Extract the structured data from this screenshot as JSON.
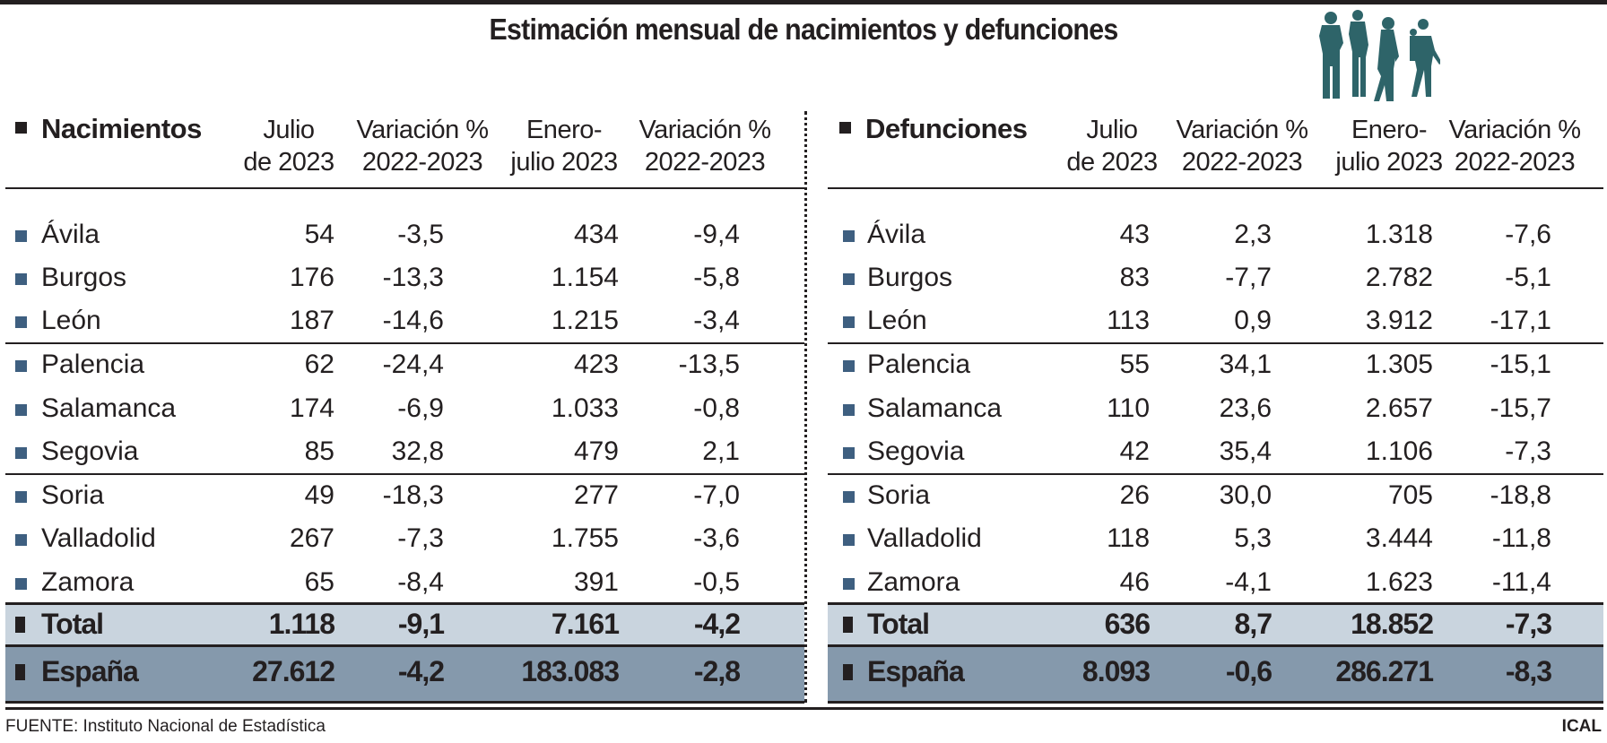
{
  "title": "Estimación mensual de nacimientos y defunciones",
  "chart_data": [
    {
      "type": "table",
      "title": "Nacimientos",
      "columns": [
        "Julio de 2023",
        "Variación % 2022-2023",
        "Enero-julio 2023",
        "Variación % 2022-2023"
      ],
      "header_lines": [
        [
          "Julio",
          "de 2023"
        ],
        [
          "Variación %",
          "2022-2023"
        ],
        [
          "Enero-",
          "julio 2023"
        ],
        [
          "Variación %",
          "2022-2023"
        ]
      ],
      "rows": [
        {
          "label": "Ávila",
          "values": [
            "54",
            "-3,5",
            "434",
            "-9,4"
          ]
        },
        {
          "label": "Burgos",
          "values": [
            "176",
            "-13,3",
            "1.154",
            "-5,8"
          ]
        },
        {
          "label": "León",
          "values": [
            "187",
            "-14,6",
            "1.215",
            "-3,4"
          ]
        },
        {
          "label": "Palencia",
          "values": [
            "62",
            "-24,4",
            "423",
            "-13,5"
          ]
        },
        {
          "label": "Salamanca",
          "values": [
            "174",
            "-6,9",
            "1.033",
            "-0,8"
          ]
        },
        {
          "label": "Segovia",
          "values": [
            "85",
            "32,8",
            "479",
            "2,1"
          ]
        },
        {
          "label": "Soria",
          "values": [
            "49",
            "-18,3",
            "277",
            "-7,0"
          ]
        },
        {
          "label": "Valladolid",
          "values": [
            "267",
            "-7,3",
            "1.755",
            "-3,6"
          ]
        },
        {
          "label": "Zamora",
          "values": [
            "65",
            "-8,4",
            "391",
            "-0,5"
          ]
        }
      ],
      "total": {
        "label": "Total",
        "values": [
          "1.118",
          "-9,1",
          "7.161",
          "-4,2"
        ]
      },
      "spain": {
        "label": "España",
        "values": [
          "27.612",
          "-4,2",
          "183.083",
          "-2,8"
        ]
      }
    },
    {
      "type": "table",
      "title": "Defunciones",
      "columns": [
        "Julio de 2023",
        "Variación % 2022-2023",
        "Enero-julio 2023",
        "Variación % 2022-2023"
      ],
      "header_lines": [
        [
          "Julio",
          "de 2023"
        ],
        [
          "Variación %",
          "2022-2023"
        ],
        [
          "Enero-",
          "julio 2023"
        ],
        [
          "Variación %",
          "2022-2023"
        ]
      ],
      "rows": [
        {
          "label": "Ávila",
          "values": [
            "43",
            "2,3",
            "1.318",
            "-7,6"
          ]
        },
        {
          "label": "Burgos",
          "values": [
            "83",
            "-7,7",
            "2.782",
            "-5,1"
          ]
        },
        {
          "label": "León",
          "values": [
            "113",
            "0,9",
            "3.912",
            "-17,1"
          ]
        },
        {
          "label": "Palencia",
          "values": [
            "55",
            "34,1",
            "1.305",
            "-15,1"
          ]
        },
        {
          "label": "Salamanca",
          "values": [
            "110",
            "23,6",
            "2.657",
            "-15,7"
          ]
        },
        {
          "label": "Segovia",
          "values": [
            "42",
            "35,4",
            "1.106",
            "-7,3"
          ]
        },
        {
          "label": "Soria",
          "values": [
            "26",
            "30,0",
            "705",
            "-18,8"
          ]
        },
        {
          "label": "Valladolid",
          "values": [
            "118",
            "5,3",
            "3.444",
            "-11,8"
          ]
        },
        {
          "label": "Zamora",
          "values": [
            "46",
            "-4,1",
            "1.623",
            "-11,4"
          ]
        }
      ],
      "total": {
        "label": "Total",
        "values": [
          "636",
          "8,7",
          "18.852",
          "-7,3"
        ]
      },
      "spain": {
        "label": "España",
        "values": [
          "8.093",
          "-0,6",
          "286.271",
          "-8,3"
        ]
      }
    }
  ],
  "colors": {
    "row_marker": "#3e5f80",
    "total_bg": "#c9d4de",
    "spain_bg": "#8599ac",
    "silhouette": "#2e6469"
  },
  "icons": {
    "decoration": "people-silhouette-icon"
  },
  "footer": {
    "source": "FUENTE: Instituto Nacional de Estadística",
    "credit": "ICAL"
  }
}
